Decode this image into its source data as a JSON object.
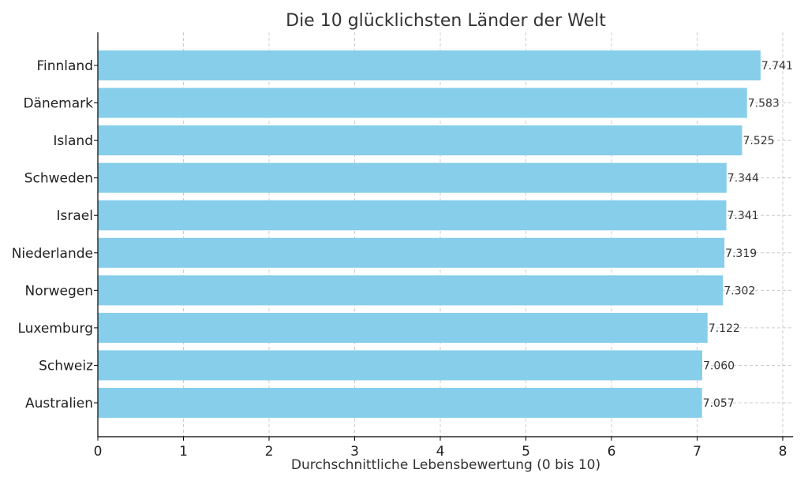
{
  "chart_data": {
    "type": "bar",
    "orientation": "horizontal",
    "title": "Die 10 glücklichsten Länder der Welt",
    "xlabel": "Durchschnittliche Lebensbewertung (0 bis 10)",
    "ylabel": "",
    "categories": [
      "Finnland",
      "Dänemark",
      "Island",
      "Schweden",
      "Israel",
      "Niederlande",
      "Norwegen",
      "Luxemburg",
      "Schweiz",
      "Australien"
    ],
    "values": [
      7.741,
      7.583,
      7.525,
      7.344,
      7.341,
      7.319,
      7.302,
      7.122,
      7.06,
      7.057
    ],
    "value_labels": [
      "7.741",
      "7.583",
      "7.525",
      "7.344",
      "7.341",
      "7.319",
      "7.302",
      "7.122",
      "7.060",
      "7.057"
    ],
    "xlim": [
      0,
      8.12
    ],
    "xticks": [
      0,
      1,
      2,
      3,
      4,
      5,
      6,
      7,
      8
    ],
    "grid": true,
    "bar_color": "#87CEEB"
  }
}
